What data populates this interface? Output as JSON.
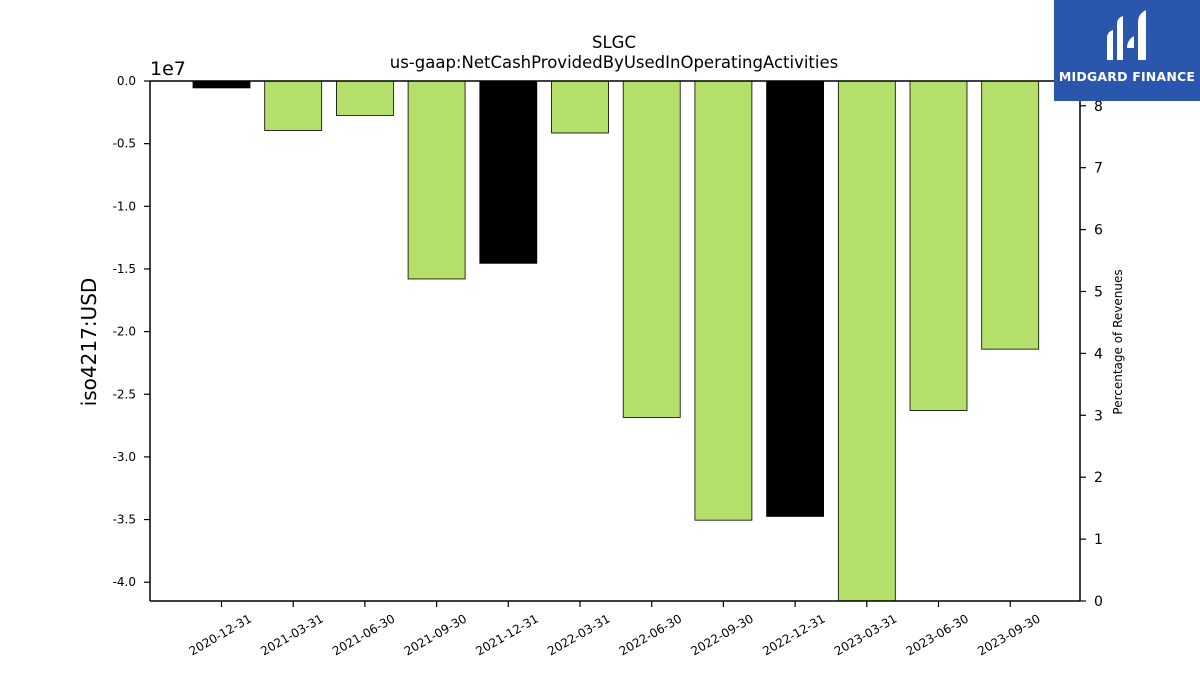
{
  "brand": {
    "name": "MIDGARD FINANCE",
    "color": "#2b56ae"
  },
  "chart_data": {
    "type": "bar",
    "title": "SLGC",
    "subtitle": "us-gaap:NetCashProvidedByUsedInOperatingActivities",
    "ylabel": "iso4217:USD",
    "y_offset_label": "1e7",
    "y2label": "Percentage of Revenues",
    "categories": [
      "2020-12-31",
      "2021-03-31",
      "2021-06-30",
      "2021-09-30",
      "2021-12-31",
      "2022-03-31",
      "2022-06-30",
      "2022-09-30",
      "2022-12-31",
      "2023-03-31",
      "2023-06-30",
      "2023-09-30"
    ],
    "values": [
      -550000,
      -3950000,
      -2750000,
      -15800000,
      -14550000,
      -4150000,
      -26850000,
      -35050000,
      -34750000,
      -41500000,
      -26300000,
      -21400000
    ],
    "bar_colors": [
      "#000000",
      "#b5df6b",
      "#b5df6b",
      "#b5df6b",
      "#000000",
      "#b5df6b",
      "#b5df6b",
      "#b5df6b",
      "#000000",
      "#b5df6b",
      "#b5df6b",
      "#b5df6b"
    ],
    "ylim": [
      -41500000,
      0
    ],
    "yticks": [
      0.0,
      -0.5,
      -1.0,
      -1.5,
      -2.0,
      -2.5,
      -3.0,
      -3.5,
      -4.0
    ],
    "y2lim": [
      0,
      8.4
    ],
    "y2ticks": [
      0,
      1,
      2,
      3,
      4,
      5,
      6,
      7,
      8
    ],
    "grid": false,
    "legend": "none"
  }
}
